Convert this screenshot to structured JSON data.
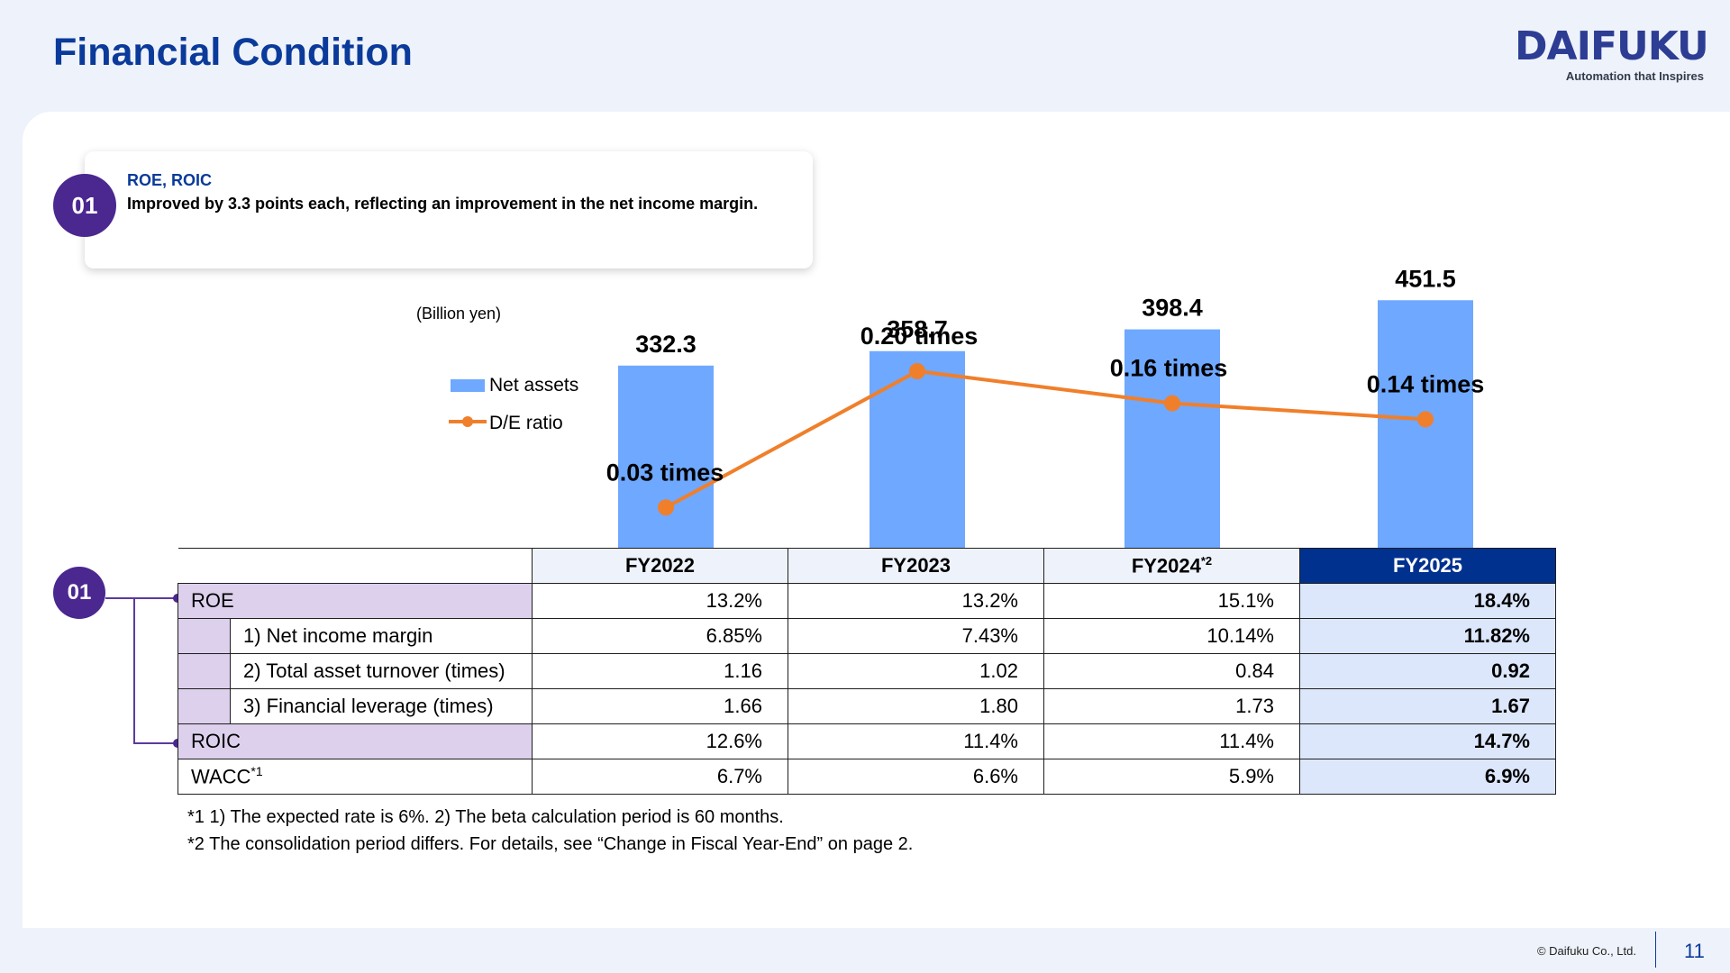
{
  "page": {
    "title": "Financial Condition",
    "logo_name": "DAIFUKU",
    "logo_tagline": "Automation that Inspires",
    "copyright": "© Daifuku Co., Ltd.",
    "page_number": "11"
  },
  "callout": {
    "badge": "01",
    "heading": "ROE, ROIC",
    "text": "Improved by 3.3 points each, reflecting an improvement in the net income margin."
  },
  "chart_data": {
    "type": "bar",
    "unit_label": "(Billion yen)",
    "categories": [
      "FY2022",
      "FY2023",
      "FY2024",
      "FY2025"
    ],
    "series": [
      {
        "name": "Net assets",
        "type": "bar",
        "values": [
          332.3,
          358.7,
          398.4,
          451.5
        ],
        "labels": [
          "332.3",
          "358.7",
          "398.4",
          "451.5"
        ],
        "color": "#6fa8ff"
      },
      {
        "name": "D/E ratio",
        "type": "line",
        "values": [
          0.03,
          0.2,
          0.16,
          0.14
        ],
        "labels": [
          "0.03 times",
          "0.20 times",
          "0.16 times",
          "0.14 times"
        ],
        "color": "#f07f2b"
      }
    ],
    "legend": "left"
  },
  "table": {
    "badge": "01",
    "headers": [
      "FY2022",
      "FY2023",
      "FY2024",
      "FY2025"
    ],
    "header_note": "*2",
    "rows": {
      "roe": {
        "label": "ROE",
        "values": [
          "13.2%",
          "13.2%",
          "15.1%",
          "18.4%"
        ]
      },
      "nim": {
        "label": "1) Net income margin",
        "values": [
          "6.85%",
          "7.43%",
          "10.14%",
          "11.82%"
        ]
      },
      "tat": {
        "label": "2) Total asset turnover (times)",
        "values": [
          "1.16",
          "1.02",
          "0.84",
          "0.92"
        ]
      },
      "fl": {
        "label": "3) Financial leverage (times)",
        "values": [
          "1.66",
          "1.80",
          "1.73",
          "1.67"
        ]
      },
      "roic": {
        "label": "ROIC",
        "values": [
          "12.6%",
          "11.4%",
          "11.4%",
          "14.7%"
        ]
      },
      "wacc": {
        "label": "WACC",
        "label_note": "*1",
        "values": [
          "6.7%",
          "6.6%",
          "5.9%",
          "6.9%"
        ]
      }
    }
  },
  "notes": [
    "*1 1) The expected rate is 6%. 2) The beta calculation period is 60 months.",
    "*2 The consolidation period differs. For details, see “Change in Fiscal Year-End” on page 2."
  ],
  "colors": {
    "title": "#0a3a9a",
    "badge": "#4b2790",
    "highlight_header": "#00318f",
    "highlight_cell": "#dde7fb",
    "label_purple": "#dcd0ec"
  }
}
